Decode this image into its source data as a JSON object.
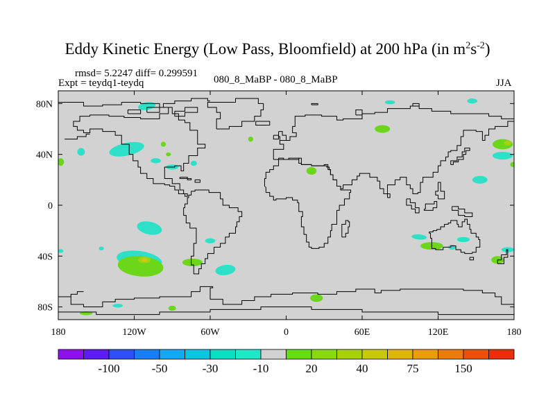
{
  "title": {
    "main": "Eddy Kinetic Energy (Low Pass, Bloomfield) at 200 hPa (in m",
    "unit_m_exp": "2",
    "unit_s": "s",
    "unit_s_exp": "-2",
    "close": ")"
  },
  "header": {
    "stats": "rmsd= 5.2247 diff= 0.299591",
    "expt": "Expt = teydq1-teydq",
    "case": "080_8_MaBP - 080_8_MaBP",
    "season": "JJA"
  },
  "chart_data": {
    "type": "heatmap",
    "projection": "cylindrical equidistant",
    "xlim": [
      -180,
      180
    ],
    "ylim": [
      -90,
      90
    ],
    "x_ticks": [
      {
        "value": -180,
        "label": "180"
      },
      {
        "value": -120,
        "label": "120W"
      },
      {
        "value": -60,
        "label": "60W"
      },
      {
        "value": 0,
        "label": "0"
      },
      {
        "value": 60,
        "label": "60E"
      },
      {
        "value": 120,
        "label": "120E"
      },
      {
        "value": 180,
        "label": "180"
      }
    ],
    "y_ticks": [
      {
        "value": 80,
        "label": "80N"
      },
      {
        "value": 40,
        "label": "40N"
      },
      {
        "value": 0,
        "label": "0"
      },
      {
        "value": -40,
        "label": "40S"
      },
      {
        "value": -80,
        "label": "80S"
      }
    ],
    "background_color": "#d2d2d2",
    "coastline_color": "#000000",
    "colorbar": {
      "colors": [
        "#8c12e8",
        "#5d1cf0",
        "#2f50f0",
        "#1a7ef0",
        "#17a6f0",
        "#10c4e0",
        "#12dcc0",
        "#22e6c8",
        "#d2d2d2",
        "#66dc14",
        "#8ad814",
        "#a6d010",
        "#c8c810",
        "#e0b410",
        "#e89c10",
        "#e87c10",
        "#e8500e",
        "#e82e0a"
      ],
      "labels": [
        {
          "value": "-100",
          "boundary": 2
        },
        {
          "value": "-50",
          "boundary": 4
        },
        {
          "value": "-30",
          "boundary": 6
        },
        {
          "value": "-10",
          "boundary": 8
        },
        {
          "value": "20",
          "boundary": 10
        },
        {
          "value": "40",
          "boundary": 12
        },
        {
          "value": "75",
          "boundary": 14
        },
        {
          "value": "150",
          "boundary": 16
        }
      ]
    },
    "regions": [
      {
        "name": "turquoise",
        "color": "#2ee0c8",
        "value_range": "-10 to -20",
        "lon": -126,
        "lat": 44,
        "rx": 14,
        "ry": 5,
        "rot": -12
      },
      {
        "name": "turquoise",
        "color": "#2ee0c8",
        "value_range": "-10 to -20",
        "lon": -162,
        "lat": 42,
        "rx": 3,
        "ry": 3,
        "rot": 0
      },
      {
        "name": "turquoise",
        "color": "#2ee0c8",
        "value_range": "-10 to -20",
        "lon": -103,
        "lat": 35,
        "rx": 4,
        "ry": 2,
        "rot": 0
      },
      {
        "name": "turquoise",
        "color": "#2ee0c8",
        "value_range": "-10 to -20",
        "lon": -90,
        "lat": 30,
        "rx": 5,
        "ry": 2,
        "rot": 0
      },
      {
        "name": "turquoise",
        "color": "#2ee0c8",
        "value_range": "-10 to -20",
        "lon": -73,
        "lat": 33,
        "rx": 2.5,
        "ry": 2,
        "rot": 0
      },
      {
        "name": "turquoise",
        "color": "#2ee0c8",
        "value_range": "-10 to -20",
        "lon": -108,
        "lat": -18,
        "rx": 10,
        "ry": 5,
        "rot": 12
      },
      {
        "name": "turquoise",
        "color": "#2ee0c8",
        "value_range": "-10 to -20",
        "lon": -146,
        "lat": -34,
        "rx": 2,
        "ry": 1.5,
        "rot": 0
      },
      {
        "name": "turquoise",
        "color": "#2ee0c8",
        "value_range": "-10 to -20",
        "lon": -116,
        "lat": -43,
        "rx": 18,
        "ry": 7,
        "rot": 8
      },
      {
        "name": "turquoise",
        "color": "#2ee0c8",
        "value_range": "-10 to -20",
        "lon": -60,
        "lat": -28,
        "rx": 4,
        "ry": 2,
        "rot": 0
      },
      {
        "name": "turquoise",
        "color": "#2ee0c8",
        "value_range": "-10 to -20",
        "lon": -48,
        "lat": -51,
        "rx": 8,
        "ry": 4,
        "rot": -8
      },
      {
        "name": "turquoise",
        "color": "#2ee0c8",
        "value_range": "-10 to -20",
        "lon": -178,
        "lat": -36,
        "rx": 2,
        "ry": 1.5,
        "rot": 0
      },
      {
        "name": "turquoise",
        "color": "#2ee0c8",
        "value_range": "-10 to -20",
        "lon": -133,
        "lat": -79,
        "rx": 4,
        "ry": 1.5,
        "rot": 0
      },
      {
        "name": "turquoise",
        "color": "#2ee0c8",
        "value_range": "-10 to -20",
        "lon": -110,
        "lat": 78,
        "rx": 7,
        "ry": 3,
        "rot": -10
      },
      {
        "name": "turquoise",
        "color": "#2ee0c8",
        "value_range": "-10 to -20",
        "lon": 147,
        "lat": 82,
        "rx": 4,
        "ry": 2,
        "rot": 0
      },
      {
        "name": "turquoise",
        "color": "#2ee0c8",
        "value_range": "-10 to -20",
        "lon": 171,
        "lat": 39,
        "rx": 8,
        "ry": 3,
        "rot": 0
      },
      {
        "name": "turquoise",
        "color": "#2ee0c8",
        "value_range": "-10 to -20",
        "lon": 153,
        "lat": 20,
        "rx": 6,
        "ry": 3,
        "rot": 0
      },
      {
        "name": "turquoise",
        "color": "#2ee0c8",
        "value_range": "-10 to -20",
        "lon": 105,
        "lat": -25,
        "rx": 6,
        "ry": 2,
        "rot": 5
      },
      {
        "name": "turquoise",
        "color": "#2ee0c8",
        "value_range": "-10 to -20",
        "lon": 140,
        "lat": -27,
        "rx": 5,
        "ry": 2,
        "rot": 0
      },
      {
        "name": "turquoise",
        "color": "#2ee0c8",
        "value_range": "-10 to -20",
        "lon": 131,
        "lat": -33,
        "rx": 3,
        "ry": 2,
        "rot": 0
      },
      {
        "name": "turquoise",
        "color": "#2ee0c8",
        "value_range": "-10 to -20",
        "lon": 175,
        "lat": -35,
        "rx": 5,
        "ry": 2,
        "rot": 0
      },
      {
        "name": "turquoise",
        "color": "#2ee0c8",
        "value_range": "-10 to -20",
        "lon": 82,
        "lat": 81,
        "rx": 4,
        "ry": 1.5,
        "rot": 0
      },
      {
        "name": "green",
        "color": "#6cd61a",
        "value_range": "10 to 20",
        "lon": 76,
        "lat": 60,
        "rx": 6,
        "ry": 3,
        "rot": 0
      },
      {
        "name": "green",
        "color": "#6cd61a",
        "value_range": "10 to 20",
        "lon": 171,
        "lat": 48,
        "rx": 8,
        "ry": 4,
        "rot": 0
      },
      {
        "name": "green",
        "color": "#6cd61a",
        "value_range": "10 to 20",
        "lon": -178,
        "lat": 34,
        "rx": 2.5,
        "ry": 3,
        "rot": 0
      },
      {
        "name": "green",
        "color": "#6cd61a",
        "value_range": "10 to 20",
        "lon": -93,
        "lat": 40,
        "rx": 2,
        "ry": 1.5,
        "rot": 0
      },
      {
        "name": "green",
        "color": "#6cd61a",
        "value_range": "10 to 20",
        "lon": -28,
        "lat": 52,
        "rx": 2,
        "ry": 2,
        "rot": 0
      },
      {
        "name": "green",
        "color": "#6cd61a",
        "value_range": "10 to 20",
        "lon": 20,
        "lat": 27,
        "rx": 4,
        "ry": 3,
        "rot": 0
      },
      {
        "name": "green",
        "color": "#6cd61a",
        "value_range": "10 to 20",
        "lon": 179,
        "lat": 32,
        "rx": 2,
        "ry": 2,
        "rot": 0
      },
      {
        "name": "green",
        "color": "#6cd61a",
        "value_range": "10 to 20",
        "lon": -115,
        "lat": -48,
        "rx": 18,
        "ry": 8,
        "rot": 5
      },
      {
        "name": "green",
        "color": "#6cd61a",
        "value_range": "10 to 20",
        "lon": -74,
        "lat": -45,
        "rx": 8,
        "ry": 3,
        "rot": 0
      },
      {
        "name": "green",
        "color": "#6cd61a",
        "value_range": "10 to 20",
        "lon": 115,
        "lat": -32,
        "rx": 9,
        "ry": 3,
        "rot": 0
      },
      {
        "name": "green",
        "color": "#6cd61a",
        "value_range": "10 to 20",
        "lon": 167,
        "lat": -43,
        "rx": 5,
        "ry": 3,
        "rot": 0
      },
      {
        "name": "green",
        "color": "#6cd61a",
        "value_range": "10 to 20",
        "lon": 24,
        "lat": -73,
        "rx": 5,
        "ry": 3,
        "rot": 0
      },
      {
        "name": "green",
        "color": "#6cd61a",
        "value_range": "10 to 20",
        "lon": -90,
        "lat": -81,
        "rx": 3,
        "ry": 2,
        "rot": 0
      },
      {
        "name": "green",
        "color": "#6cd61a",
        "value_range": "10 to 20",
        "lon": -158,
        "lat": -85,
        "rx": 5,
        "ry": 1.5,
        "rot": 0
      },
      {
        "name": "green",
        "color": "#6cd61a",
        "value_range": "10 to 20",
        "lon": -97,
        "lat": 48,
        "rx": 2,
        "ry": 2,
        "rot": 0
      },
      {
        "name": "yellow-green",
        "color": "#a8d012",
        "value_range": "20 to 30",
        "lon": 175,
        "lat": 49,
        "rx": 3,
        "ry": 2,
        "rot": 0
      },
      {
        "name": "yellow-green",
        "color": "#a8d012",
        "value_range": "20 to 30",
        "lon": -112,
        "lat": -43,
        "rx": 5,
        "ry": 2.5,
        "rot": 0
      },
      {
        "name": "yellow",
        "color": "#cccc10",
        "value_range": "30 to 40",
        "lon": -112,
        "lat": -43,
        "rx": 2,
        "ry": 1.5,
        "rot": 0
      }
    ],
    "coastlines": [
      "M-180,81 L-160,81 L-160,78 L-145,78 L-145,79 L-130,79 L-130,81 L-115,81 L-115,80 L-100,80 L-100,77 L-90,77 L-90,72 L-85,72 L-85,67 L-80,67 L-80,65 L-76,65 L-76,59 L-70,59 L-70,48 L-64,48 L-64,45 L-70,45 L-70,39 L-77,39 L-77,33 L-81,33 L-81,27 L-83,27 L-83,31 L-88,31 L-88,30 L-96,30 L-96,21 L-90,21 L-90,17 L-84,17 L-84,12 L-81,12 L-81,9 L-78,9 L-78,7 L-80,7 L-80,9 L-85,9 L-85,12 L-88,12 L-88,15 L-92,15 L-92,16 L-96,16 L-96,17 L-105,17 L-105,21 L-110,21 L-110,25 L-115,25 L-115,30 L-117,30 L-117,35 L-121,35 L-121,40 L-124,40 L-124,48 L-130,48 L-130,55 L-135,55 L-135,58 L-145,58 L-145,60 L-155,60 L-155,57 L-160,57 L-160,59 L-165,59 L-165,62 L-168,62 L-168,66 L-163,66 L-163,70 L-155,70 L-155,71 L-140,71 L-140,70 L-128,70 L-128,69 L-115,69 L-115,68 L-100,68 L-100,72 L-93,72 L-93,77 L-97,77 L-97,80 L-88,80 L-88,82 L-75,82 L-75,84 L-62,84 L-62,82 L-60,82",
      "M-70,12 L-61,12 L-61,10 L-52,10 L-52,5 L-50,5 L-50,0 L-45,0 L-45,-2 L-38,-2 L-38,-5 L-35,-5 L-35,-9 L-37,-9 L-37,-13 L-39,-13 L-39,-17 L-40,-17 L-40,-22 L-45,-22 L-45,-25 L-48,-25 L-48,-30 L-52,-30 L-52,-33 L-57,-33 L-57,-38 L-62,-38 L-62,-42 L-64,-42 L-64,-46 L-67,-46 L-67,-50 L-69,-50 L-69,-54 L-73,-54 L-73,-47 L-75,-47 L-75,-40 L-73,-40 L-73,-30 L-71,-30 L-71,-18 L-76,-18 L-76,-14 L-79,-14 L-79,-8 L-81,-8 L-81,-2 L-80,-2 L-80,1 L-78,1 L-78,6 L-77,6 L-77,8 L-75,8 L-75,11 L-72,11 L-72,12 L-70,12",
      "M-55,60 L-55,68 L-52,68 L-52,73 L-55,73 L-55,77 L-62,77 L-62,81 L-40,81 L-40,84 L-22,84 L-22,80 L-18,80 L-18,75 L-20,75 L-20,70 L-25,70 L-25,66 L-35,66 L-35,62 L-45,62 L-45,60 L-55,60",
      "M-80,77 L-70,77 L-70,73 L-80,73 L-80,70 L-88,70 L-88,74 L-80,74 L-80,77",
      "M-24,66 L-13,66 L-13,63 L-24,63 L-24,66",
      "M-10,36 L-10,44 L-2,44 L-2,48 L-5,48 L-5,51 L3,51 L3,54 L8,54 L8,57 L5,57 L5,62 L7,62 L7,70 L15,70 L15,71 L28,71 L28,70 L40,70 L40,67 L45,67 L45,68 L60,68 L60,72 L70,72 L70,73 L80,73 L80,76 L98,76 L98,78 L105,78 L105,76 L115,76 L115,74 L130,74 L130,72 L142,72 L142,72 L160,72 L160,70 L170,70 L170,68 L180,68",
      "M180,66 L175,66 L175,62 L165,62 L165,60 L160,60 L160,55 L157,55 L157,51 L155,51 L155,58 L150,58 L150,59 L140,59 L140,54 L138,54 L138,47 L135,47 L135,43 L130,43 L130,42 L128,42 L128,38 L126,38 L126,35 L122,35 L122,31 L120,31 L120,26 L116,26 L116,22 L108,22 L108,18 L106,18 L106,10 L104,10 L104,9 L100,9 L100,13 L98,13 L98,16 L95,16 L95,22 L90,22 L90,20 L86,20 L86,16 L80,16 L80,9 L77,9 L77,13 L74,13 L74,19 L72,19 L72,22 L66,22 L66,25 L58,25 L58,23 L56,23 L56,20 L52,20 L52,16 L45,16 L45,13 L43,13 L43,15 L40,15 L40,20 L37,20 L37,24 L35,24 L35,28 L33,28 L33,32 L30,32 L30,31 L20,31 L20,32 L12,32 L12,33 L10,33 L10,37 L2,37 L2,36 L-2,36 L-2,37 L-6,37 L-6,36 L-10,36",
      "M-17,15 L-17,21 L-16,21 L-16,26 L-13,26 L-13,28 L-10,28 L-10,31 L-6,31 L-6,36 L10,36 L10,37 L12,37 L12,32 L20,32 L20,31 L32,31 L32,30 L34,30 L34,28 L35,28 L35,24 L37,24 L37,20 L40,20 L40,15 L43,15 L43,12 L51,12 L51,10 L50,10 L50,5 L46,5 L46,0 L42,0 L42,-4 L40,-4 L40,-10 L40,-15 L36,-15 L36,-20 L35,-20 L35,-25 L33,-25 L33,-30 L30,-30 L30,-33 L26,-33 L26,-34 L20,-34 L20,-33 L18,-33 L18,-29 L16,-29 L16,-23 L14,-23 L14,-17 L12,-17 L12,-9 L13,-9 L13,-5 L10,-5 L10,2 L9,2 L9,4 L5,4 L5,6 L0,6 L0,5 L-8,5 L-8,4 L-10,4 L-10,7 L-13,7 L-13,10 L-16,10 L-16,14 L-17,15",
      "M44,-25 L47,-25 L47,-22 L49,-22 L49,-17 L50,-17 L50,-13 L49,-13 L49,-12 L47,-12 L47,-15 L44,-15 L44,-25",
      "M-6,58 L-3,58 L-3,55 L0,55 L0,51 L-5,51 L-5,54 L-6,54 L-6,58",
      "M-10,55 L-6,55 L-6,52 L-10,52 L-10,55",
      "M130,32 L132,32 L132,34 L136,34 L136,36 L140,36 L140,40 L142,40 L142,43 L145,43 L145,45 L141,45 L141,42 L139,42 L139,38 L135,38 L135,35 L130,35 L130,32",
      "M-180,-72 L-170,-72 L-170,-78 L-160,-78 L-160,-80 L-145,-80 L-145,-76 L-135,-76 L-135,-74 L-120,-74 L-120,-73 L-100,-73 L-100,-72 L-75,-72 L-75,-68 L-68,-68 L-68,-64 L-58,-64 L-58,-65 L-60,-65 L-60,-74 L-50,-74 L-50,-78 L-35,-78 L-35,-75 L-25,-75 L-25,-72 L-12,-72 L-12,-70 L5,-70 L5,-69 L25,-69 L25,-70 L40,-70 L40,-68 L55,-68 L55,-66 L70,-66 L70,-69 L75,-69 L75,-67 L90,-67 L90,-66 L110,-66 L110,-66 L125,-66 L125,-66 L140,-66 L140,-67 L155,-67 L155,-69 L165,-69 L165,-72 L170,-72 L170,-78 L180,-78",
      "M-180,-84 L-150,-84 L-150,-86 L-100,-86 L-100,-84 L-60,-84 L-60,-82 L-20,-82 L-20,-80 L20,-80 L20,-82 L60,-82 L60,-84 L120,-84 L120,-86 L180,-86",
      "M-170,-72 L-170,-70 L-165,-70 L-165,-68 L-160,-68",
      "M113,-22 L114,-22 L114,-26 L115,-26 L115,-34 L118,-34 L118,-35 L124,-35 L124,-33 L130,-33 L130,-32 L134,-32 L134,-35 L138,-35 L138,-37 L141,-37 L141,-38 L147,-38 L147,-37 L150,-37 L150,-33 L153,-33 L153,-27 L152,-27 L152,-25 L150,-25 L150,-22 L146,-22 L146,-19 L145,-19 L145,-15 L143,-15 L143,-11 L141,-11 L141,-13 L139,-13 L139,-17 L136,-17 L136,-15 L135,-15 L135,-12 L130,-12 L130,-14 L128,-14 L128,-15 L125,-15 L125,-17 L122,-17 L122,-19 L119,-19 L119,-20 L116,-20 L116,-21 L113,-21 L113,-22",
      "M145,-41 L148,-41 L148,-43 L145,-43 L145,-41",
      "M167,-46 L172,-46 L172,-41 L175,-41 L175,-35 L174,-35 L174,-39 L170,-39 L170,-43 L167,-43 L167,-46",
      "M131,-1 L136,-1 L136,-3 L141,-3 L141,-6 L147,-6 L147,-9 L141,-9 L141,-8 L136,-8 L136,-4 L131,-4 L131,-1",
      "M109,-3 L110,-3 L110,1 L117,1 L117,3 L119,3 L119,-2 L116,-2 L116,-4 L109,-4 L109,-3",
      "M95,5 L98,5 L98,2 L102,2 L102,-2 L105,-2 L105,-6 L102,-6 L102,-3 L99,-3 L99,0 L95,0 L95,5",
      "M120,5 L125,5 L125,11 L122,11 L122,18 L120,18 L120,11 L118,11 L118,8 L120,8 L120,5",
      "M80,6 L82,6 L82,9 L80,9 L80,6",
      "M-72,20 L-68,20 L-68,18 L-72,18 L-72,20",
      "M-84,22 L-78,22 L-78,20 L-75,20 L-75,21 L-84,21 L-84,22",
      "M-175,52 L-165,52 L-165,54 L-158,54 L-158,56 L-155,56",
      "M100,78 L105,78 L105,80 L100,80 L100,78",
      "M55,71 L60,71 L60,75 L55,75 L55,71",
      "M20,79 L25,79 L25,80 L20,80 L20,79",
      "M-125,72 L-115,72 L-115,75 L-125,75 L-125,72",
      "M-110,73 L-100,73 L-100,77 L-110,77 L-110,73"
    ]
  }
}
